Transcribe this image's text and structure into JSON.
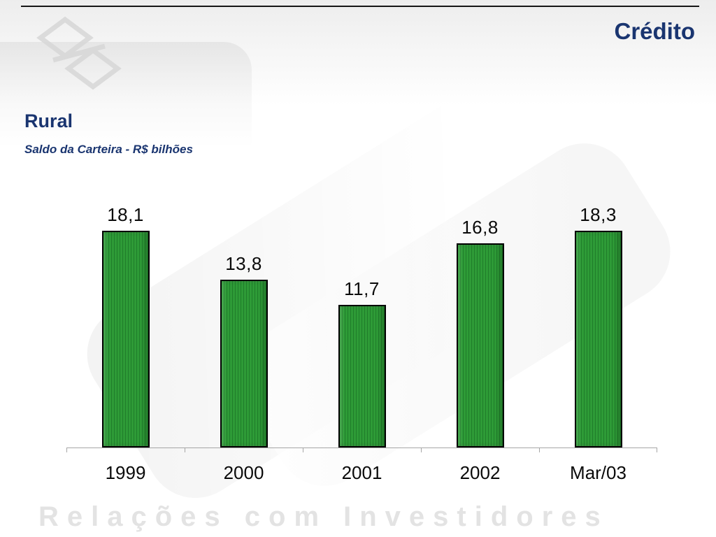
{
  "slide": {
    "top_title": "Crédito",
    "section_title": "Rural",
    "subtitle": "Saldo da Carteira  - R$ bilhões",
    "watermark": "Relações com Investidores"
  },
  "colors": {
    "navy": "#1a3570",
    "bar_green": "#2e9b37",
    "bar_green_dark": "#1f7d2a",
    "axis_gray": "#a6a6a6",
    "watermark_gray": "#e3e3e3"
  },
  "chart_data": {
    "type": "bar",
    "title": "Rural",
    "subtitle": "Saldo da Carteira - R$ bilhões",
    "unit": "R$ bilhões",
    "categories": [
      "1999",
      "2000",
      "2001",
      "2002",
      "Mar/03"
    ],
    "values": [
      18.1,
      13.8,
      11.7,
      16.8,
      18.3
    ],
    "value_labels": [
      "18,1",
      "13,8",
      "11,7",
      "16,8",
      "18,3"
    ],
    "ylim": [
      0,
      20
    ],
    "grid": false,
    "legend": false,
    "bar_color": "#2e9b37"
  }
}
